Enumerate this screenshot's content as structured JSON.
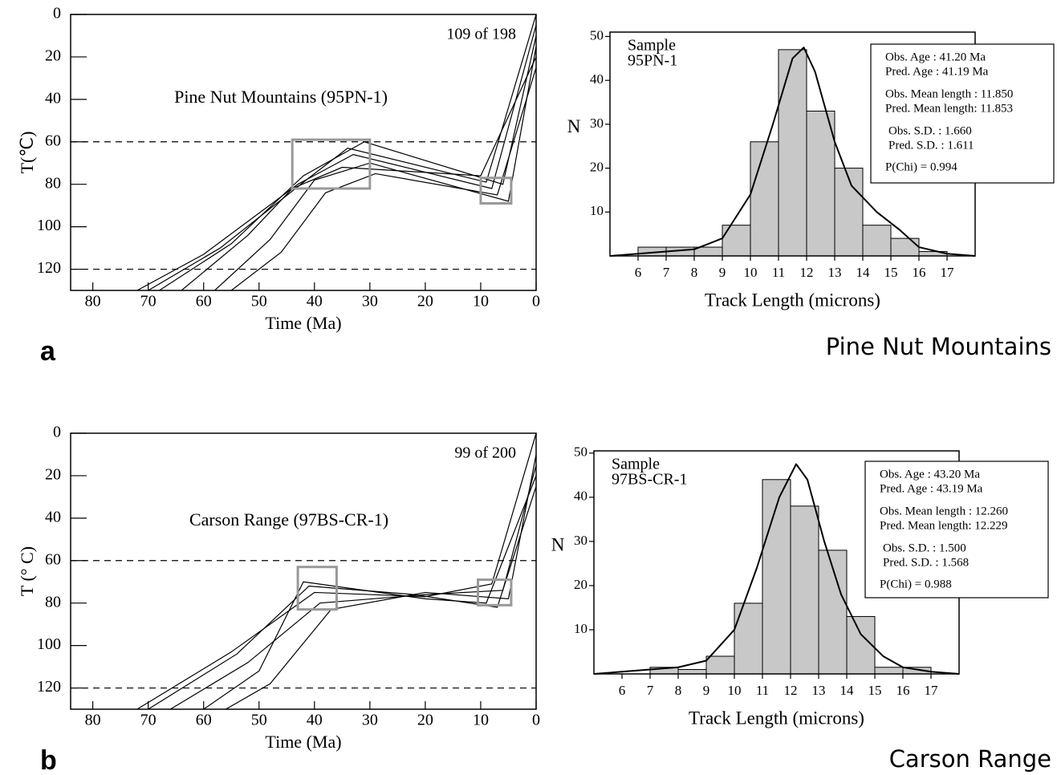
{
  "chart_data": [
    {
      "type": "line",
      "annotation": "Pine Nut Mountains (95PN-1)",
      "counter": "109 of 198",
      "xlabel": "Time (Ma)",
      "ylabel": "T(℃)",
      "xlim": [
        84,
        0
      ],
      "xticks": [
        80,
        70,
        60,
        50,
        40,
        30,
        20,
        10,
        0
      ],
      "ylim": [
        0,
        130
      ],
      "yticks": [
        0,
        20,
        40,
        60,
        80,
        100,
        120
      ],
      "y_inverted": true,
      "reference_lines": [
        60,
        120
      ],
      "box_color": "#999999",
      "boxes": [
        {
          "x": [
            44,
            30
          ],
          "y": [
            59,
            82
          ]
        },
        {
          "x": [
            10,
            4.5
          ],
          "y": [
            77,
            89
          ]
        }
      ],
      "series": [
        {
          "color": "#000000",
          "x": [
            72,
            60,
            43,
            33,
            8,
            0
          ],
          "values": [
            130,
            113,
            80,
            66,
            82,
            5
          ]
        },
        {
          "color": "#000000",
          "x": [
            68,
            55,
            42,
            31,
            6,
            0
          ],
          "values": [
            130,
            108,
            76,
            60,
            80,
            10
          ]
        },
        {
          "color": "#000000",
          "x": [
            64,
            52,
            44,
            35,
            10,
            0
          ],
          "values": [
            130,
            104,
            82,
            72,
            76,
            20
          ]
        },
        {
          "color": "#000000",
          "x": [
            58,
            48,
            40,
            30,
            5,
            0
          ],
          "values": [
            130,
            106,
            78,
            70,
            88,
            15
          ]
        },
        {
          "color": "#000000",
          "x": [
            55,
            46,
            38,
            29,
            7,
            0
          ],
          "values": [
            130,
            112,
            84,
            75,
            85,
            25
          ]
        },
        {
          "color": "#000000",
          "x": [
            70,
            57,
            41,
            34,
            9,
            0
          ],
          "values": [
            130,
            110,
            77,
            63,
            79,
            0
          ]
        }
      ]
    },
    {
      "type": "histogram",
      "xlabel": "Track Length (microns)",
      "ylabel": "N",
      "sample_label": [
        "Sample",
        "95PN-1"
      ],
      "info_box": [
        "Obs. Age :  41.20 Ma",
        "Pred. Age  :  41.19 Ma",
        "Obs. Mean length : 11.850",
        "Pred. Mean length: 11.853",
        "Obs. S.D.  :  1.660",
        "Pred. S.D. :  1.611",
        "P(Chi) = 0.994"
      ],
      "xlim": [
        5,
        18
      ],
      "xticks": [
        6,
        7,
        8,
        9,
        10,
        11,
        12,
        13,
        14,
        15,
        16,
        17
      ],
      "ylim": [
        0,
        51
      ],
      "yticks": [
        10,
        20,
        30,
        40,
        50
      ],
      "color": "#c8c8c8",
      "bins": [
        6,
        7,
        8,
        9,
        10,
        11,
        12,
        13,
        14,
        15,
        16,
        17
      ],
      "counts": [
        2,
        2,
        2,
        7,
        26,
        47,
        33,
        20,
        7,
        4,
        1
      ],
      "curve": {
        "color": "#000000",
        "x": [
          5,
          8,
          9,
          10,
          10.8,
          11.5,
          11.9,
          12.3,
          13,
          13.6,
          14.5,
          15.3,
          16,
          17,
          18
        ],
        "values": [
          0,
          1.5,
          4,
          14,
          30,
          45,
          47.5,
          42,
          26,
          16,
          10,
          6,
          2,
          0.5,
          0
        ]
      }
    },
    {
      "type": "line",
      "annotation": "Carson Range (97BS-CR-1)",
      "counter": "99 of 200",
      "xlabel": "Time (Ma)",
      "ylabel": "T (° C)",
      "xlim": [
        84,
        0
      ],
      "xticks": [
        80,
        70,
        60,
        50,
        40,
        30,
        20,
        10,
        0
      ],
      "ylim": [
        0,
        130
      ],
      "yticks": [
        0,
        20,
        40,
        60,
        80,
        100,
        120
      ],
      "y_inverted": true,
      "reference_lines": [
        60,
        120
      ],
      "box_color": "#999999",
      "boxes": [
        {
          "x": [
            43,
            36
          ],
          "y": [
            63,
            83
          ]
        },
        {
          "x": [
            10.5,
            4.5
          ],
          "y": [
            69,
            81
          ]
        }
      ],
      "series": [
        {
          "color": "#000000",
          "x": [
            72,
            55,
            40,
            20,
            8,
            0
          ],
          "values": [
            130,
            103,
            75,
            77,
            71,
            0
          ]
        },
        {
          "color": "#000000",
          "x": [
            66,
            52,
            39,
            20,
            6,
            0
          ],
          "values": [
            130,
            108,
            80,
            76,
            74,
            15
          ]
        },
        {
          "color": "#000000",
          "x": [
            60,
            50,
            42,
            20,
            9,
            0
          ],
          "values": [
            130,
            112,
            70,
            78,
            80,
            20
          ]
        },
        {
          "color": "#000000",
          "x": [
            56,
            48,
            37,
            20,
            5,
            0
          ],
          "values": [
            130,
            118,
            83,
            75,
            78,
            10
          ]
        },
        {
          "color": "#000000",
          "x": [
            70,
            54,
            41,
            22,
            7,
            0
          ],
          "values": [
            130,
            104,
            72,
            76,
            82,
            25
          ]
        }
      ]
    },
    {
      "type": "histogram",
      "xlabel": "Track Length (microns)",
      "ylabel": "N",
      "sample_label": [
        "Sample",
        "97BS-CR-1"
      ],
      "info_box": [
        "Obs. Age :  43.20 Ma",
        "Pred. Age  :  43.19 Ma",
        "Obs. Mean length : 12.260",
        "Pred. Mean length: 12.229",
        "Obs. S.D. :  1.500",
        "Pred. S.D. :  1.568",
        "P(Chi) = 0.988"
      ],
      "xlim": [
        5,
        18
      ],
      "xticks": [
        6,
        7,
        8,
        9,
        10,
        11,
        12,
        13,
        14,
        15,
        16,
        17
      ],
      "ylim": [
        0,
        50.5
      ],
      "yticks": [
        10,
        20,
        30,
        40,
        50
      ],
      "color": "#c8c8c8",
      "bins": [
        7,
        8,
        9,
        10,
        11,
        12,
        13,
        14,
        15,
        16,
        17
      ],
      "counts": [
        1.5,
        1,
        4,
        16,
        44,
        38,
        28,
        13,
        1.5,
        1.5
      ],
      "curve": {
        "color": "#000000",
        "x": [
          5,
          8,
          9,
          10,
          10.8,
          11.6,
          12.2,
          12.6,
          13.2,
          13.8,
          14.5,
          15.3,
          16,
          17,
          18
        ],
        "values": [
          0,
          1.5,
          3,
          10,
          24,
          40,
          47.5,
          44,
          30,
          18,
          9,
          4,
          1.5,
          0.5,
          0
        ]
      }
    }
  ],
  "panel_labels": [
    "a",
    "b"
  ],
  "region_titles": [
    "Pine Nut Mountains",
    "Carson Range"
  ]
}
